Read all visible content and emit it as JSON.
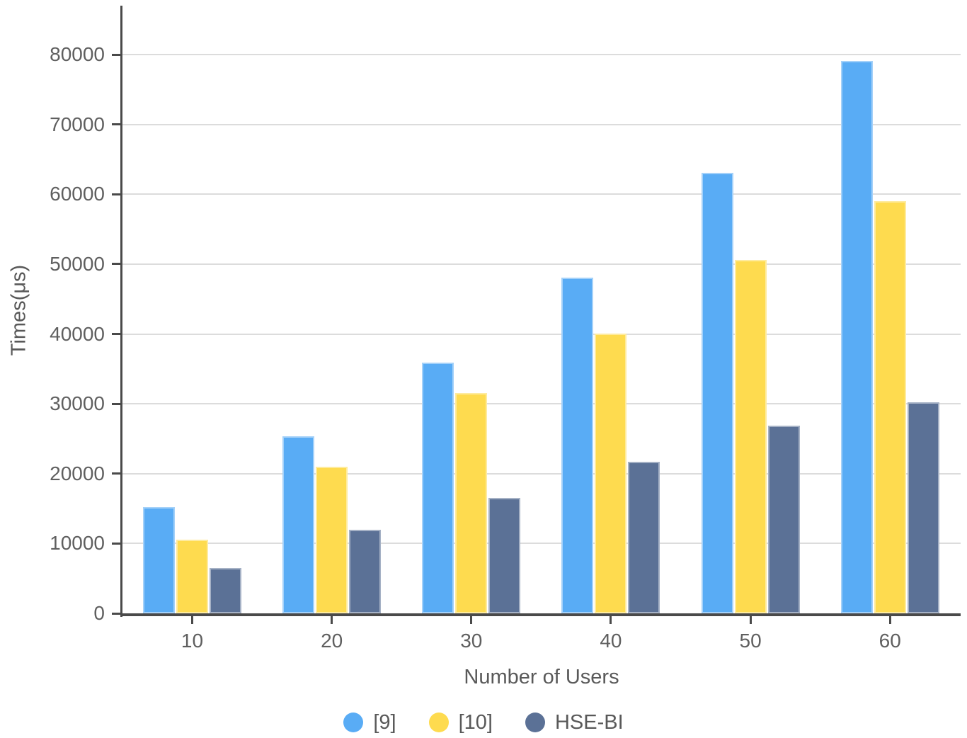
{
  "chart_data": {
    "type": "bar",
    "title": "",
    "xlabel": "Number of Users",
    "ylabel": "Times(μs)",
    "categories": [
      "10",
      "20",
      "30",
      "40",
      "50",
      "60"
    ],
    "series": [
      {
        "name": "[9]",
        "color": "#59ACF5",
        "values": [
          15200,
          25400,
          35900,
          48100,
          63100,
          79100
        ]
      },
      {
        "name": "[10]",
        "color": "#FEDB4F",
        "values": [
          10500,
          21000,
          31500,
          40100,
          50600,
          59000
        ]
      },
      {
        "name": "HSE-BI",
        "color": "#5B7196",
        "values": [
          6500,
          12000,
          16500,
          21700,
          26900,
          30200
        ]
      }
    ],
    "yticks": [
      0,
      10000,
      20000,
      30000,
      40000,
      50000,
      60000,
      70000,
      80000
    ],
    "ylim": [
      0,
      87000
    ],
    "grid": true,
    "legend_position": "bottom"
  },
  "colors": {
    "axis": "#4a4a4a",
    "gridline": "#dcdcdc",
    "tick_text": "#5f5f5f",
    "label_text": "#595959"
  }
}
